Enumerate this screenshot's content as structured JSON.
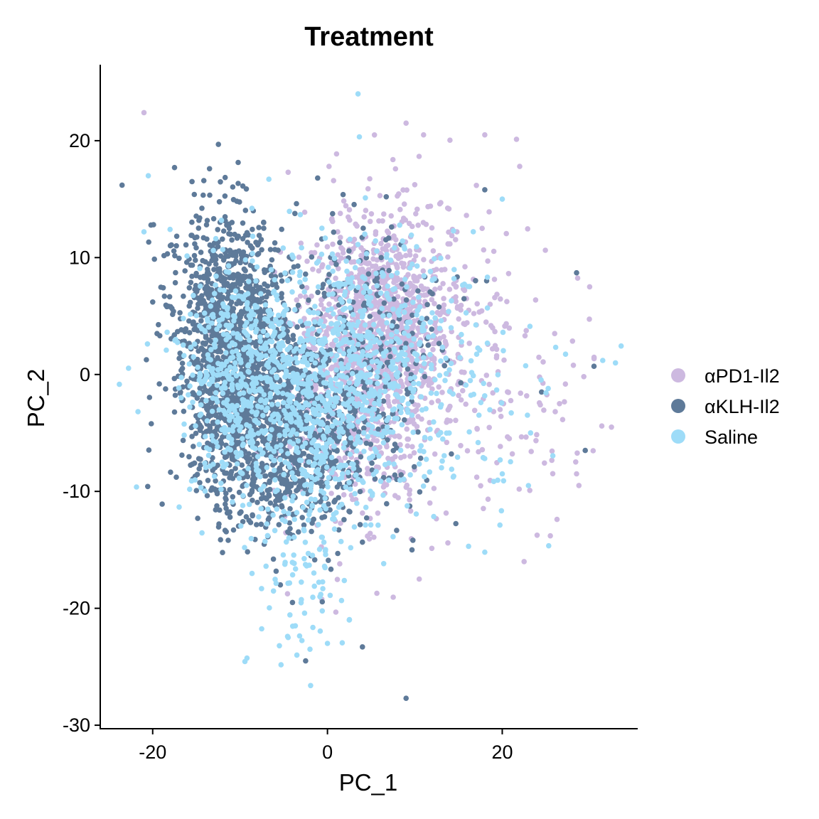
{
  "chart_data": {
    "type": "scatter",
    "title": "Treatment",
    "xlabel": "PC_1",
    "ylabel": "PC_2",
    "xlim": [
      -26,
      35.5
    ],
    "ylim": [
      -30.3,
      26.5
    ],
    "xticks": [
      -20,
      0,
      20
    ],
    "yticks": [
      20,
      10,
      0,
      -10,
      -20,
      -30
    ],
    "xtick_labels": [
      "-20",
      "0",
      "20"
    ],
    "ytick_labels": [
      "20",
      "10",
      "0",
      "-10",
      "-20",
      "-30"
    ],
    "grid": false,
    "legend_position": "right",
    "series": [
      {
        "name": "αPD1-Il2",
        "color": "#CDB9E0",
        "clusters": [
          {
            "cx": 6,
            "cy": 5,
            "sx": 3.5,
            "sy": 4.5,
            "n": 700
          },
          {
            "cx": 3,
            "cy": -2,
            "sx": 4.5,
            "sy": 5.5,
            "n": 600
          },
          {
            "cx": 12,
            "cy": 3,
            "sx": 6,
            "sy": 6,
            "n": 220
          },
          {
            "cx": 22,
            "cy": -3,
            "sx": 6,
            "sy": 6,
            "n": 70
          }
        ],
        "points": [
          [
            -21,
            22.4
          ],
          [
            9,
            21.5
          ],
          [
            11,
            20.5
          ],
          [
            18,
            20.5
          ],
          [
            22,
            17.8
          ],
          [
            -4.5,
            17.3
          ],
          [
            6,
            15.3
          ],
          [
            26,
            3.5
          ],
          [
            30,
            7.5
          ],
          [
            28.5,
            -8.5
          ],
          [
            32.5,
            -4.5
          ],
          [
            25.5,
            -13.8
          ],
          [
            22.5,
            -16
          ],
          [
            10.5,
            -17.5
          ]
        ]
      },
      {
        "name": "αKLH-Il2",
        "color": "#5E7A99",
        "clusters": [
          {
            "cx": -11,
            "cy": 2,
            "sx": 3,
            "sy": 5.5,
            "n": 900
          },
          {
            "cx": -7,
            "cy": -3,
            "sx": 4,
            "sy": 5,
            "n": 700
          },
          {
            "cx": -3,
            "cy": -6,
            "sx": 3.5,
            "sy": 4,
            "n": 400
          },
          {
            "cx": 4,
            "cy": 1,
            "sx": 5,
            "sy": 6,
            "n": 300
          },
          {
            "cx": -13,
            "cy": 8,
            "sx": 3,
            "sy": 3,
            "n": 150
          }
        ],
        "points": [
          [
            -23.5,
            16.2
          ],
          [
            -17.5,
            17.7
          ],
          [
            -13.5,
            17.6
          ],
          [
            -15.5,
            16.5
          ],
          [
            -20,
            6.2
          ],
          [
            -19.5,
            3.5
          ],
          [
            -4,
            -19.5
          ],
          [
            -2.5,
            -24.5
          ],
          [
            4,
            -23.3
          ],
          [
            9,
            -27.7
          ],
          [
            28.5,
            8.7
          ],
          [
            30.5,
            0.7
          ],
          [
            29.5,
            -6.5
          ],
          [
            18,
            15.8
          ],
          [
            24.5,
            -1.5
          ]
        ]
      },
      {
        "name": "Saline",
        "color": "#9EDCF8",
        "clusters": [
          {
            "cx": -10,
            "cy": 0,
            "sx": 3.5,
            "sy": 5,
            "n": 500
          },
          {
            "cx": -1,
            "cy": -3,
            "sx": 4.5,
            "sy": 5,
            "n": 500
          },
          {
            "cx": 6,
            "cy": 2,
            "sx": 4.5,
            "sy": 5.5,
            "n": 400
          },
          {
            "cx": -3,
            "cy": -16,
            "sx": 3,
            "sy": 5,
            "n": 90
          },
          {
            "cx": 15,
            "cy": -3,
            "sx": 6,
            "sy": 6,
            "n": 80
          }
        ],
        "points": [
          [
            3.5,
            24
          ],
          [
            -20.5,
            17
          ],
          [
            -21,
            12.2
          ],
          [
            -6.7,
            16.7
          ],
          [
            20,
            15
          ],
          [
            31.5,
            1.2
          ],
          [
            20,
            -8.5
          ],
          [
            23,
            -9.5
          ],
          [
            18,
            -15.2
          ],
          [
            -4.5,
            -22.5
          ],
          [
            -2,
            -23.5
          ],
          [
            0,
            -23
          ],
          [
            -5.5,
            -23.2
          ],
          [
            -3.5,
            -24
          ],
          [
            2.5,
            -21
          ]
        ]
      }
    ]
  }
}
